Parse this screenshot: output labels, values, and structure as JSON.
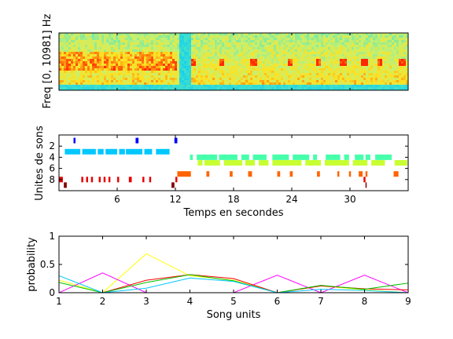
{
  "chart_data": [
    {
      "type": "heatmap",
      "ylabel": "Freq [0, 10981] Hz",
      "xlim": [
        0,
        36
      ],
      "description_colors": {
        "low": "#00ffff",
        "mid": "#c8f064",
        "high": "#ff0000"
      }
    },
    {
      "type": "scatter",
      "xlabel": "Temps en secondes",
      "ylabel": "Unites de sons",
      "xticks": [
        "6",
        "12",
        "18",
        "24",
        "30"
      ],
      "yticks": [
        "2",
        "4",
        "6",
        "8"
      ],
      "xlim": [
        0,
        36
      ],
      "ylim": [
        0,
        10
      ],
      "series": [
        {
          "unit": 1,
          "color": "#0000ff",
          "segments": [
            [
              1.5,
              1.7
            ],
            [
              7.9,
              8.2
            ],
            [
              11.9,
              12.2
            ]
          ]
        },
        {
          "unit": 3,
          "color": "#00c8ff",
          "segments": [
            [
              0.6,
              2.2
            ],
            [
              2.4,
              3.8
            ],
            [
              4.0,
              4.6
            ],
            [
              4.8,
              6.0
            ],
            [
              6.2,
              6.8
            ],
            [
              6.9,
              8.6
            ],
            [
              8.8,
              9.6
            ],
            [
              10.0,
              11.4
            ]
          ]
        },
        {
          "unit": 4,
          "color": "#46ffaa",
          "segments": [
            [
              13.5,
              13.8
            ],
            [
              14.2,
              16.3
            ],
            [
              16.5,
              18.4
            ],
            [
              18.8,
              19.6
            ],
            [
              20.0,
              21.4
            ],
            [
              22.0,
              23.7
            ],
            [
              24.1,
              25.8
            ],
            [
              26.2,
              26.6
            ],
            [
              27.5,
              29.0
            ],
            [
              29.4,
              29.9
            ],
            [
              30.5,
              31.4
            ],
            [
              31.6,
              32.1
            ],
            [
              32.6,
              34.3
            ]
          ]
        },
        {
          "unit": 5,
          "color": "#c8ff32",
          "segments": [
            [
              14.3,
              14.8
            ],
            [
              15.0,
              16.6
            ],
            [
              17.0,
              18.9
            ],
            [
              19.2,
              20.2
            ],
            [
              20.6,
              21.6
            ],
            [
              22.0,
              25.0
            ],
            [
              25.4,
              27.0
            ],
            [
              27.4,
              29.9
            ],
            [
              30.3,
              31.8
            ],
            [
              32.2,
              33.6
            ],
            [
              34.6,
              35.9
            ]
          ]
        },
        {
          "unit": 7,
          "color": "#ff6400",
          "segments": [
            [
              12.2,
              13.6
            ],
            [
              15.2,
              15.5
            ],
            [
              17.6,
              17.9
            ],
            [
              19.5,
              19.9
            ],
            [
              22.5,
              22.8
            ],
            [
              23.8,
              24.1
            ],
            [
              26.6,
              26.9
            ],
            [
              28.7,
              28.9
            ],
            [
              29.9,
              30.1
            ],
            [
              30.9,
              31.3
            ],
            [
              31.6,
              31.8
            ],
            [
              34.5,
              35.0
            ]
          ]
        },
        {
          "unit": 8,
          "color": "#e60000",
          "segments": [
            [
              0.0,
              0.4
            ],
            [
              2.3,
              2.5
            ],
            [
              2.8,
              3.0
            ],
            [
              3.3,
              3.5
            ],
            [
              4.1,
              4.3
            ],
            [
              4.6,
              4.8
            ],
            [
              5.1,
              5.3
            ],
            [
              6.0,
              6.2
            ],
            [
              7.2,
              7.5
            ],
            [
              8.6,
              8.8
            ],
            [
              9.3,
              9.5
            ],
            [
              12.0,
              12.2
            ],
            [
              31.4,
              31.6
            ]
          ]
        },
        {
          "unit": 9,
          "color": "#800000",
          "segments": [
            [
              0.5,
              0.8
            ],
            [
              11.6,
              11.9
            ],
            [
              31.6,
              31.7
            ]
          ]
        }
      ]
    },
    {
      "type": "line",
      "xlabel": "Song units",
      "ylabel": "probability",
      "xticks": [
        "1",
        "2",
        "3",
        "4",
        "5",
        "6",
        "7",
        "8",
        "9"
      ],
      "yticks": [
        "0",
        "0.5",
        "1"
      ],
      "xlim": [
        1,
        9
      ],
      "ylim": [
        0,
        1
      ],
      "x": [
        1,
        2,
        3,
        4,
        5,
        6,
        7,
        8,
        9
      ],
      "series": [
        {
          "color": "#ffff00",
          "values": [
            0.22,
            0.0,
            0.69,
            0.3,
            0.22,
            0.0,
            0.12,
            0.05,
            0.0
          ]
        },
        {
          "color": "#ff00ff",
          "values": [
            0.0,
            0.35,
            0.0,
            0.0,
            0.0,
            0.31,
            0.0,
            0.31,
            0.0
          ]
        },
        {
          "color": "#ff0000",
          "values": [
            0.0,
            0.0,
            0.22,
            0.32,
            0.25,
            0.0,
            0.12,
            0.07,
            0.05
          ]
        },
        {
          "color": "#00c000",
          "values": [
            0.18,
            0.0,
            0.18,
            0.32,
            0.21,
            0.0,
            0.13,
            0.06,
            0.17
          ]
        },
        {
          "color": "#00c8ff",
          "values": [
            0.3,
            0.0,
            0.08,
            0.26,
            0.2,
            0.0,
            0.06,
            0.04,
            0.0
          ]
        },
        {
          "color": "#0000ff",
          "values": [
            0.0,
            0.0,
            0.0,
            0.0,
            0.0,
            0.0,
            0.0,
            0.0,
            0.0
          ]
        }
      ]
    }
  ]
}
